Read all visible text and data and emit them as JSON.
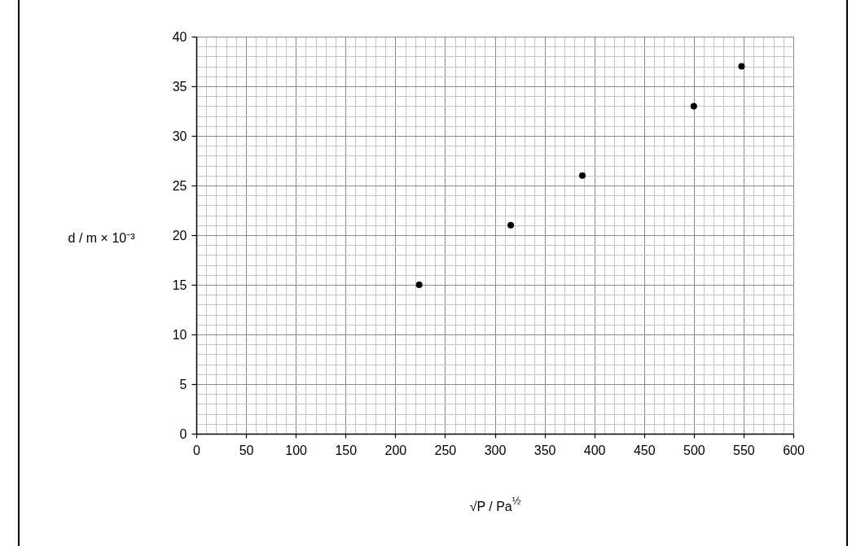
{
  "chart_data": {
    "type": "scatter",
    "xlabel": "√P / Pa$^{½}$",
    "ylabel": "d / m × 10⁻³",
    "x": [
      224,
      316,
      388,
      500,
      548
    ],
    "values": [
      15,
      21,
      26,
      33,
      37
    ],
    "color": "#000000",
    "marker": "circle",
    "xlim": [
      0,
      600
    ],
    "ylim": [
      0,
      40
    ],
    "xticks": [
      0,
      {
        "value": 10,
        "label": null
      },
      {
        "value": 20,
        "label": null
      },
      {
        "value": 30,
        "label": null
      },
      {
        "value": 40,
        "label": null
      },
      50,
      {
        "value": 60,
        "label": null
      },
      {
        "value": 70,
        "label": null
      },
      {
        "value": 80,
        "label": null
      },
      {
        "value": 90,
        "label": null
      },
      100,
      {
        "value": 110,
        "label": null
      },
      {
        "value": 120,
        "label": null
      },
      {
        "value": 130,
        "label": null
      },
      {
        "value": 140,
        "label": null
      },
      150,
      {
        "value": 160,
        "label": null
      },
      {
        "value": 170,
        "label": null
      },
      {
        "value": 180,
        "label": null
      },
      {
        "value": 190,
        "label": null
      },
      200,
      {
        "value": 210,
        "label": null
      },
      {
        "value": 220,
        "label": null
      },
      {
        "value": 230,
        "label": null
      },
      {
        "value": 240,
        "label": null
      },
      250,
      {
        "value": 260,
        "label": null
      },
      {
        "value": 270,
        "label": null
      },
      {
        "value": 280,
        "label": null
      },
      {
        "value": 290,
        "label": null
      },
      300,
      {
        "value": 310,
        "label": null
      },
      {
        "value": 320,
        "label": null
      },
      {
        "value": 330,
        "label": null
      },
      {
        "value": 340,
        "label": null
      },
      350,
      {
        "value": 360,
        "label": null
      },
      {
        "value": 370,
        "label": null
      },
      {
        "value": 380,
        "label": null
      },
      {
        "value": 390,
        "label": null
      },
      400,
      {
        "value": 410,
        "label": null
      },
      {
        "value": 420,
        "label": null
      },
      {
        "value": 430,
        "label": null
      },
      {
        "value": 440,
        "label": null
      },
      450,
      {
        "value": 460,
        "label": null
      },
      {
        "value": 470,
        "label": null
      },
      {
        "value": 480,
        "label": null
      },
      {
        "value": 490,
        "label": null
      },
      500,
      {
        "value": 510,
        "label": null
      },
      {
        "value": 520,
        "label": null
      },
      {
        "value": 530,
        "label": null
      },
      {
        "value": 540,
        "label": null
      },
      550,
      {
        "value": 560,
        "label": null
      },
      {
        "value": 570,
        "label": null
      },
      {
        "value": 580,
        "label": null
      },
      {
        "value": 590,
        "label": null
      },
      600
    ],
    "yticks": [
      0,
      {
        "value": 1,
        "label": null
      },
      {
        "value": 2,
        "label": null
      },
      {
        "value": 3,
        "label": null
      },
      {
        "value": 4,
        "label": null
      },
      5,
      {
        "value": 6,
        "label": null
      },
      {
        "value": 7,
        "label": null
      },
      {
        "value": 8,
        "label": null
      },
      {
        "value": 9,
        "label": null
      },
      10,
      {
        "value": 11,
        "label": null
      },
      {
        "value": 12,
        "label": null
      },
      {
        "value": 13,
        "label": null
      },
      {
        "value": 14,
        "label": null
      },
      15,
      {
        "value": 16,
        "label": null
      },
      {
        "value": 17,
        "label": null
      },
      {
        "value": 18,
        "label": null
      },
      {
        "value": 19,
        "label": null
      },
      20,
      {
        "value": 21,
        "label": null
      },
      {
        "value": 22,
        "label": null
      },
      {
        "value": 23,
        "label": null
      },
      {
        "value": 24,
        "label": null
      },
      25,
      {
        "value": 26,
        "label": null
      },
      {
        "value": 27,
        "label": null
      },
      {
        "value": 28,
        "label": null
      },
      {
        "value": 29,
        "label": null
      },
      30,
      {
        "value": 31,
        "label": null
      },
      {
        "value": 32,
        "label": null
      },
      {
        "value": 33,
        "label": null
      },
      {
        "value": 34,
        "label": null
      },
      35,
      {
        "value": 36,
        "label": null
      },
      {
        "value": 37,
        "label": null
      },
      {
        "value": 38,
        "label": null
      },
      {
        "value": 39,
        "label": null
      },
      40
    ],
    "grid": true
  }
}
